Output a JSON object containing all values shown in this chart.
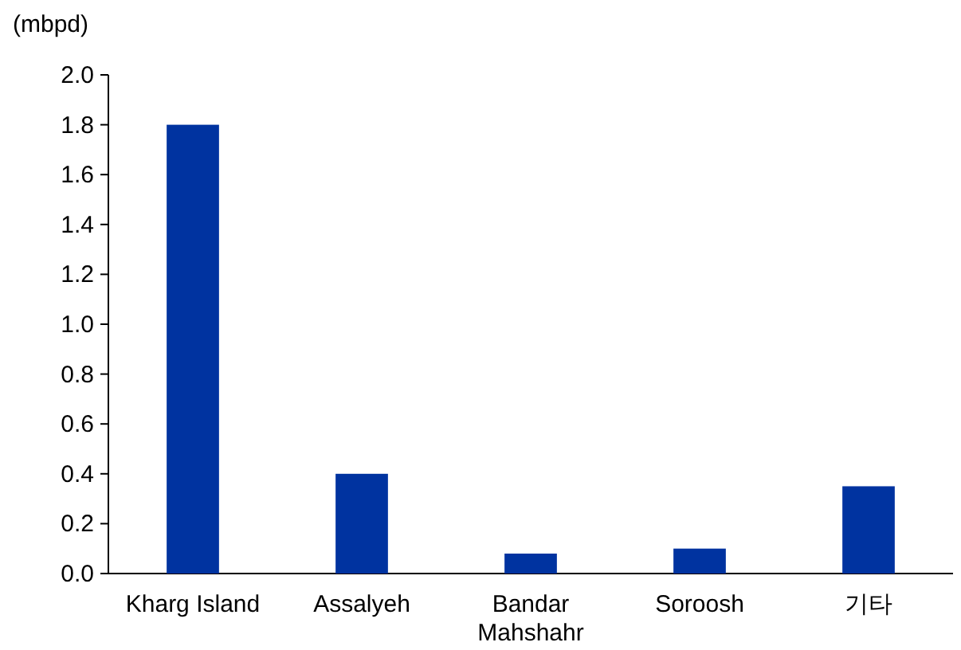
{
  "chart_data": {
    "type": "bar",
    "ylabel": "(mbpd)",
    "categories": [
      "Kharg Island",
      "Assalyeh",
      "Bandar\nMahshahr",
      "Soroosh",
      "기타"
    ],
    "values": [
      1.8,
      0.4,
      0.08,
      0.1,
      0.35
    ],
    "color": "#0033a0",
    "ylim": [
      0,
      2.0
    ],
    "yticks": [
      {
        "value": 0,
        "label": "0.0"
      },
      {
        "value": 0.2,
        "label": "0.2"
      },
      {
        "value": 0.4,
        "label": "0.4"
      },
      {
        "value": 0.6,
        "label": "0.6"
      },
      {
        "value": 0.8,
        "label": "0.8"
      },
      {
        "value": 1.0,
        "label": "1.0"
      },
      {
        "value": 1.2,
        "label": "1.2"
      },
      {
        "value": 1.4,
        "label": "1.4"
      },
      {
        "value": 1.6,
        "label": "1.6"
      },
      {
        "value": 1.8,
        "label": "1.8"
      },
      {
        "value": 2.0,
        "label": "2.0"
      }
    ]
  }
}
